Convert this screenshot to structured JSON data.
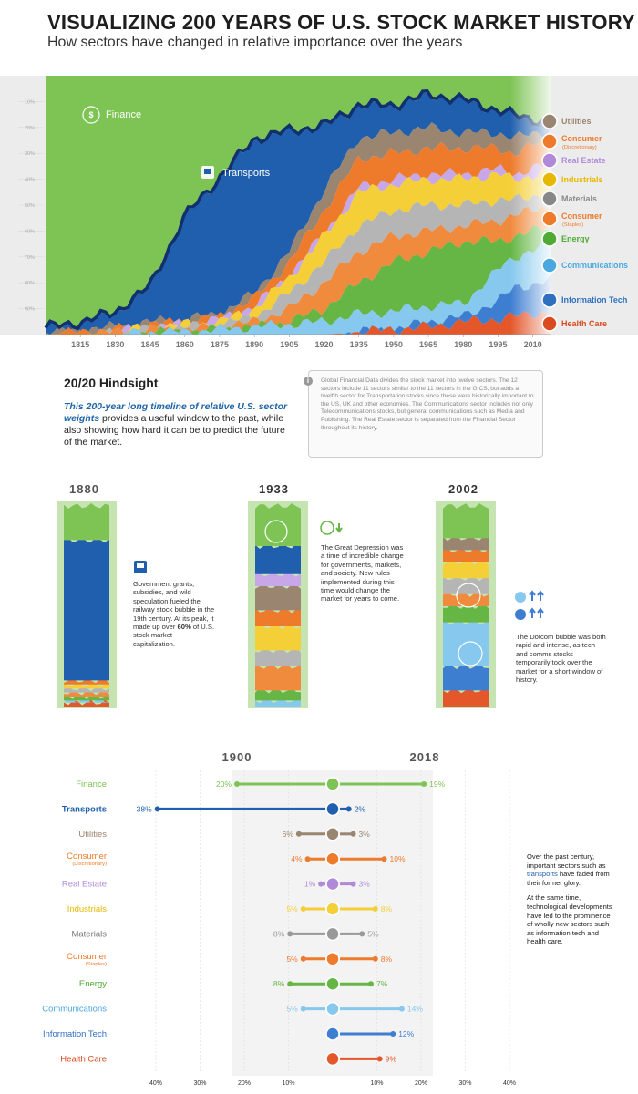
{
  "header": {
    "title": "VISUALIZING 200 YEARS OF U.S. STOCK MARKET HISTORY",
    "subtitle": "How sectors have changed in relative importance over the years"
  },
  "colors": {
    "finance": "#7ec455",
    "transports": "#1f5fae",
    "utilities": "#9a8570",
    "consumer_disc": "#ee7a2c",
    "real_estate": "#c8a7e8",
    "industrials": "#f4cf37",
    "materials": "#b5b5b5",
    "consumer_staples": "#f08a3c",
    "energy": "#65b645",
    "communications": "#86c8ee",
    "info_tech": "#3d7ed1",
    "health_care": "#e4572b",
    "top_band": "#12306e"
  },
  "chart_data": [
    {
      "type": "area",
      "title": "",
      "x_ticks": [
        "1815",
        "1830",
        "1845",
        "1860",
        "1875",
        "1890",
        "1905",
        "1920",
        "1935",
        "1950",
        "1965",
        "1980",
        "1995",
        "2010"
      ],
      "y_ticks": [
        "10%",
        "20%",
        "30%",
        "40%",
        "50%",
        "60%",
        "70%",
        "80%",
        "90%"
      ],
      "labels_in_chart": [
        "Finance",
        "Transports"
      ],
      "legend_position": "right",
      "legend": [
        {
          "name": "Utilities",
          "color": "#9a8570",
          "icon": "tower-icon"
        },
        {
          "name": "Consumer",
          "sub": "(Discretionary)",
          "color": "#ee7a2c",
          "icon": "bag-icon"
        },
        {
          "name": "Real Estate",
          "color": "#b08ad8",
          "icon": "house-icon"
        },
        {
          "name": "Industrials",
          "color": "#e6b800",
          "icon": "factory-icon"
        },
        {
          "name": "Materials",
          "color": "#888888",
          "icon": "diamond-icon"
        },
        {
          "name": "Consumer",
          "sub": "(Staples)",
          "color": "#ee7a2c",
          "icon": "cart-icon"
        },
        {
          "name": "Energy",
          "color": "#4eaa33",
          "icon": "bolt-icon"
        },
        {
          "name": "Communications",
          "color": "#4aa8df",
          "icon": "satellite-icon"
        },
        {
          "name": "Information Tech",
          "color": "#2e6fbf",
          "icon": "chip-icon"
        },
        {
          "name": "Health Care",
          "color": "#d94a21",
          "icon": "cross-icon"
        }
      ],
      "series_order_bottom_to_top": [
        "Health Care",
        "Information Tech",
        "Communications",
        "Energy",
        "Consumer (Staples)",
        "Materials",
        "Industrials",
        "Real Estate",
        "Consumer (Discretionary)",
        "Utilities",
        "Transports",
        "Finance"
      ],
      "x": [
        1800,
        1815,
        1830,
        1845,
        1860,
        1875,
        1890,
        1905,
        1920,
        1935,
        1950,
        1965,
        1980,
        1995,
        2002,
        2018
      ],
      "boundaries_bottom_to_top_percent": [
        [
          0,
          0,
          0,
          0,
          0,
          0,
          0,
          0,
          0,
          1,
          2,
          3,
          5,
          6,
          7,
          9
        ],
        [
          0,
          0,
          0,
          0,
          0,
          0,
          0,
          0,
          0,
          1,
          2,
          5,
          7,
          13,
          18,
          21
        ],
        [
          0,
          0,
          0,
          1,
          1,
          2,
          3,
          4,
          5,
          8,
          9,
          11,
          12,
          25,
          30,
          35
        ],
        [
          0,
          0,
          0,
          1,
          1,
          2,
          3,
          5,
          10,
          20,
          28,
          32,
          36,
          36,
          38,
          42
        ],
        [
          0,
          0,
          1,
          2,
          2,
          3,
          5,
          10,
          20,
          32,
          38,
          40,
          42,
          44,
          46,
          50
        ],
        [
          0,
          0,
          1,
          2,
          3,
          4,
          7,
          16,
          28,
          42,
          48,
          50,
          50,
          52,
          52,
          55
        ],
        [
          0,
          0,
          1,
          3,
          4,
          5,
          10,
          22,
          38,
          55,
          58,
          60,
          60,
          62,
          60,
          63
        ],
        [
          0,
          0,
          1,
          3,
          4,
          6,
          11,
          23,
          39,
          57,
          60,
          62,
          62,
          64,
          62,
          66
        ],
        [
          0,
          1,
          2,
          4,
          5,
          7,
          14,
          28,
          48,
          68,
          70,
          72,
          72,
          72,
          70,
          76
        ],
        [
          1,
          2,
          3,
          5,
          6,
          8,
          16,
          32,
          56,
          76,
          78,
          80,
          78,
          78,
          76,
          79
        ],
        [
          2,
          4,
          8,
          18,
          45,
          60,
          75,
          78,
          80,
          88,
          88,
          92,
          90,
          86,
          84,
          81
        ],
        [
          100,
          100,
          100,
          100,
          100,
          100,
          100,
          100,
          100,
          100,
          100,
          100,
          100,
          100,
          100,
          100
        ]
      ]
    },
    {
      "type": "dumbbell",
      "title": "",
      "years": [
        "1900",
        "2018"
      ],
      "x_ticks_left": [
        "40%",
        "30%",
        "20%",
        "10%"
      ],
      "x_ticks_right": [
        "10%",
        "20%",
        "30%",
        "40%"
      ],
      "rows": [
        {
          "name": "Finance",
          "sub": "",
          "v1900": 20,
          "v2018": 19,
          "l1900": "20%",
          "l2018": "19%",
          "color": "#7ec455",
          "label_color": "#7ec455",
          "icon": "finance-icon"
        },
        {
          "name": "Transports",
          "sub": "",
          "v1900": 38,
          "v2018": 2,
          "l1900": "38%",
          "l2018": "2%",
          "color": "#1f5fae",
          "label_color": "#1f5fae",
          "icon": "train-icon"
        },
        {
          "name": "Utilities",
          "sub": "",
          "v1900": 6,
          "v2018": 3,
          "l1900": "6%",
          "l2018": "3%",
          "color": "#9a8570",
          "label_color": "#9a8570",
          "icon": "tower-icon"
        },
        {
          "name": "Consumer",
          "sub": "(Discretionary)",
          "v1900": 4,
          "v2018": 10,
          "l1900": "4%",
          "l2018": "10%",
          "color": "#ee7a2c",
          "label_color": "#ee7a2c",
          "icon": "bag-icon"
        },
        {
          "name": "Real Estate",
          "sub": "",
          "v1900": 1,
          "v2018": 3,
          "l1900": "1%",
          "l2018": "3%",
          "color": "#b08ad8",
          "label_color": "#b08ad8",
          "icon": "house-icon"
        },
        {
          "name": "Industrials",
          "sub": "",
          "v1900": 5,
          "v2018": 8,
          "l1900": "5%",
          "l2018": "8%",
          "color": "#f4cf37",
          "label_color": "#e6b800",
          "icon": "factory-icon"
        },
        {
          "name": "Materials",
          "sub": "",
          "v1900": 8,
          "v2018": 5,
          "l1900": "8%",
          "l2018": "5%",
          "color": "#999999",
          "label_color": "#777777",
          "icon": "diamond-icon"
        },
        {
          "name": "Consumer",
          "sub": "(Staples)",
          "v1900": 5,
          "v2018": 8,
          "l1900": "5%",
          "l2018": "8%",
          "color": "#ee7a2c",
          "label_color": "#ee7a2c",
          "icon": "cart-icon"
        },
        {
          "name": "Energy",
          "sub": "",
          "v1900": 8,
          "v2018": 7,
          "l1900": "8%",
          "l2018": "7%",
          "color": "#65b645",
          "label_color": "#4eaa33",
          "icon": "bolt-icon"
        },
        {
          "name": "Communications",
          "sub": "",
          "v1900": 5,
          "v2018": 14,
          "l1900": "5%",
          "l2018": "14%",
          "color": "#86c8ee",
          "label_color": "#4aa8df",
          "icon": "satellite-icon"
        },
        {
          "name": "Information Tech",
          "sub": "",
          "v1900": 0,
          "v2018": 12,
          "l1900": "",
          "l2018": "12%",
          "color": "#3d7ed1",
          "label_color": "#2e6fbf",
          "icon": "chip-icon"
        },
        {
          "name": "Health Care",
          "sub": "",
          "v1900": 0,
          "v2018": 9,
          "l1900": "",
          "l2018": "9%",
          "color": "#e4572b",
          "label_color": "#d94a21",
          "icon": "cross-icon"
        }
      ]
    }
  ],
  "hindsight": {
    "title": "20/20 Hindsight",
    "lead": "This 200-year long timeline of relative U.S. sector weights",
    "rest": " provides a useful window to the past, while also showing how hard it can be to predict the future of the market."
  },
  "note": "Global Financial Data divides the stock market into twelve sectors. The 12 sectors include 11 sectors similar to the 11 sectors in the GICS, but adds a twelfth sector for Transportation stocks since these were historically important to the US, UK and other economies. The Communications sector includes not only Telecommunications stocks, but general communications such as Media and Publishing. The Real Estate sector is separated from the Financial Sector throughout its history.",
  "snapshots": [
    {
      "year": "1880",
      "text": "Government grants, subsidies, and wild speculation fueled the railway stock bubble in the 19th century. At its peak, it made up over ",
      "bold": "60%",
      "text2": " of U.S. stock market capitalization."
    },
    {
      "year": "1933",
      "text": "The Great Depression was a time of incredible change for governments, markets, and society. New rules implemented during this time would change the market for years to come.",
      "bold": "",
      "text2": ""
    },
    {
      "year": "2002",
      "text": "The Dotcom bubble was both rapid and intense, as tech and comms stocks temporarily took over the market for a short window of history.",
      "bold": "",
      "text2": ""
    }
  ],
  "side_note": {
    "p1a": "Over the past century, important sectors such as ",
    "p1b": "transports",
    "p1c": " have faded from their former glory.",
    "p2": "At the same time, technological developments have led to the prominence of wholly new sectors such as information tech and health care."
  }
}
